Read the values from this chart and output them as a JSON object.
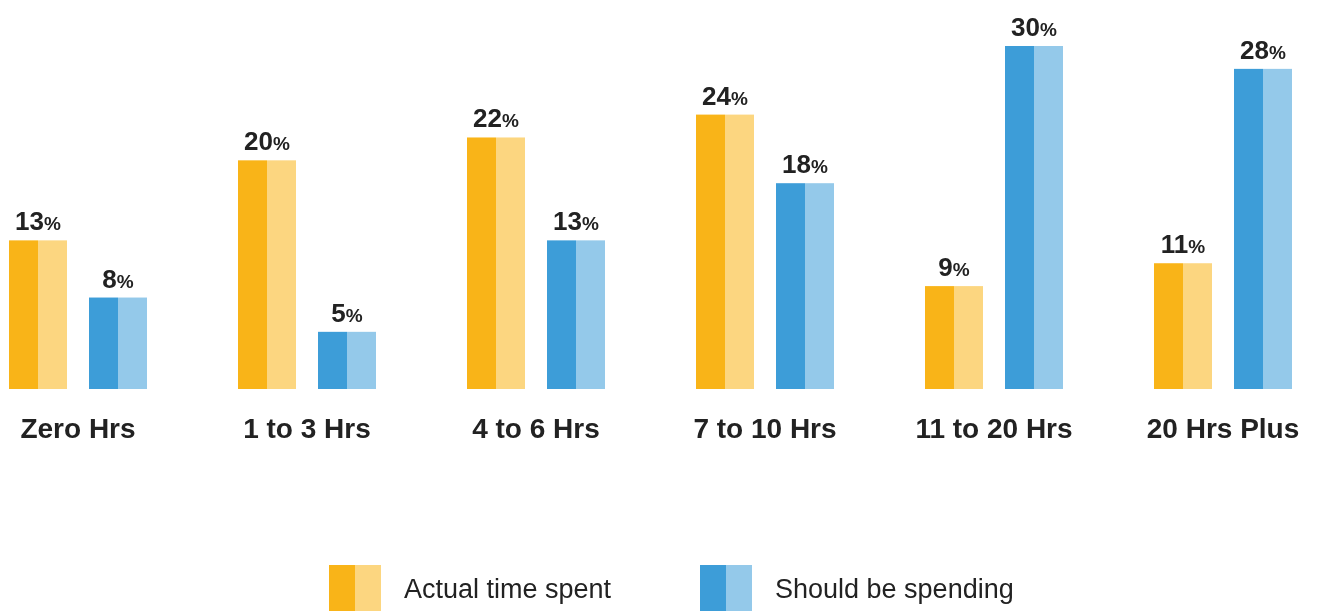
{
  "chart_data": {
    "type": "bar",
    "categories": [
      "Zero Hrs",
      "1 to 3 Hrs",
      "4 to 6 Hrs",
      "7 to 10 Hrs",
      "11 to 20 Hrs",
      "20 Hrs Plus"
    ],
    "series": [
      {
        "name": "Actual time spent",
        "color": "#f9b418",
        "values": [
          13,
          20,
          22,
          24,
          9,
          11
        ],
        "value_labels": [
          "13%",
          "20%",
          "22%",
          "24%",
          "9%",
          "11%"
        ]
      },
      {
        "name": "Should be spending",
        "color": "#3d9dd8",
        "values": [
          8,
          5,
          13,
          18,
          30,
          28
        ],
        "value_labels": [
          "8%",
          "5%",
          "13%",
          "18%",
          "30%",
          "28%"
        ]
      }
    ],
    "legend": "bottom"
  }
}
